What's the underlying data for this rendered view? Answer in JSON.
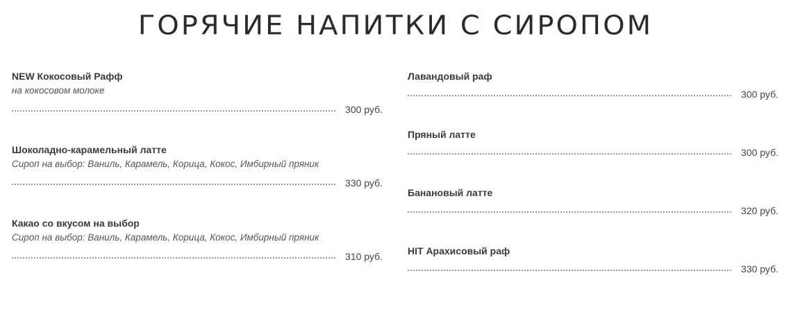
{
  "title": "ГОРЯЧИЕ НАПИТКИ С СИРОПОМ",
  "left": [
    {
      "name": "NEW Кокосовый Рафф",
      "desc": "на кокосовом молоке",
      "price": "300 руб."
    },
    {
      "name": "Шоколадно-карамельный латте",
      "desc": "Сироп на выбор: Ваниль, Карамель, Корица, Кокос, Имбирный пряник",
      "price": "330 руб."
    },
    {
      "name": "Какао со вкусом на выбор",
      "desc": "Сироп на выбор: Ваниль, Карамель, Корица, Кокос, Имбирный пряник",
      "price": "310 руб."
    }
  ],
  "right": [
    {
      "name": "Лавандовый раф",
      "price": "300 руб."
    },
    {
      "name": "Пряный латте",
      "price": "300 руб."
    },
    {
      "name": "Банановый латте",
      "price": "320 руб."
    },
    {
      "name": "HIT Арахисовый раф",
      "price": "330 руб."
    }
  ]
}
